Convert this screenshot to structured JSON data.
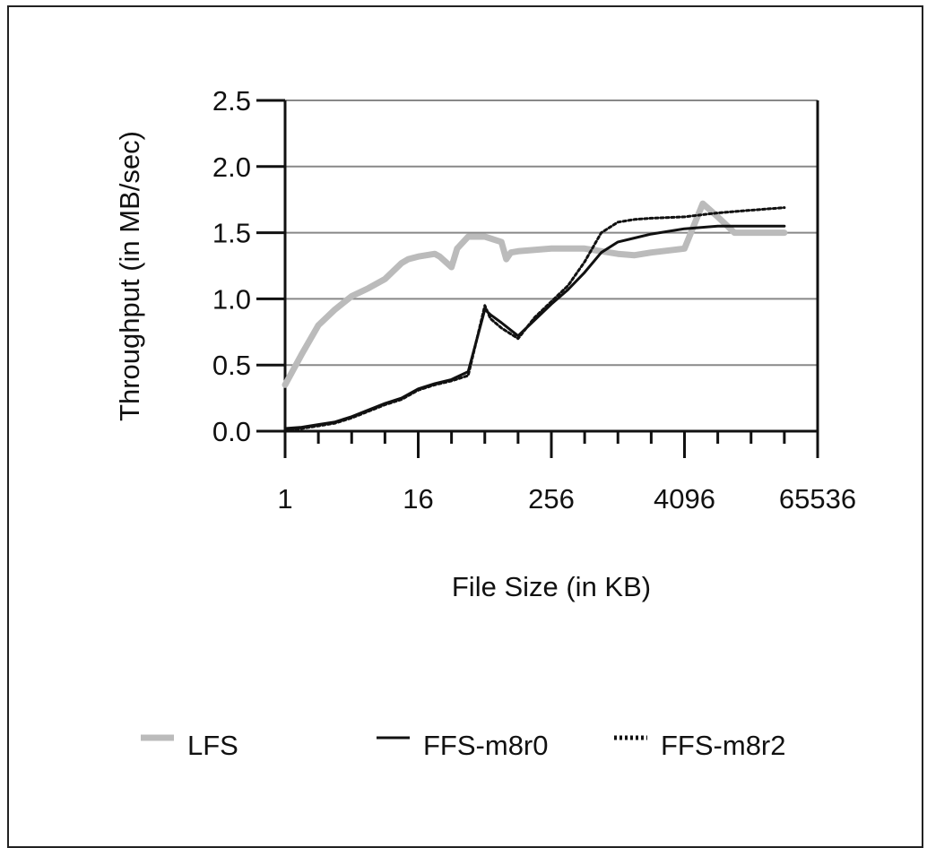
{
  "chart_data": {
    "type": "line",
    "xlabel": "File Size (in KB)",
    "ylabel": "Throughput (in MB/sec)",
    "x_scale": "log2",
    "xlim": [
      1,
      65536
    ],
    "ylim": [
      0,
      2.5
    ],
    "x_ticks": [
      "1",
      "16",
      "256",
      "4096",
      "65536"
    ],
    "y_ticks": [
      "0.0",
      "0.5",
      "1.0",
      "1.5",
      "2.0",
      "2.5"
    ],
    "grid": "horizontal",
    "legend_position": "bottom",
    "series": [
      {
        "name": "LFS",
        "color": "#bbbbbb",
        "style": "thick-solid",
        "x": [
          1,
          1.41,
          2,
          2.83,
          4,
          5.66,
          8,
          11.3,
          13,
          16,
          22.6,
          25,
          32,
          36,
          45.3,
          64,
          90.5,
          100,
          110,
          128,
          181,
          256,
          512,
          1024,
          1448,
          2048,
          4096,
          6000,
          8192,
          11585,
          16384,
          32768
        ],
        "y": [
          0.35,
          0.58,
          0.8,
          0.92,
          1.02,
          1.08,
          1.15,
          1.27,
          1.3,
          1.32,
          1.34,
          1.32,
          1.24,
          1.38,
          1.47,
          1.47,
          1.43,
          1.3,
          1.35,
          1.36,
          1.37,
          1.38,
          1.38,
          1.34,
          1.33,
          1.35,
          1.38,
          1.72,
          1.62,
          1.5,
          1.5,
          1.5
        ]
      },
      {
        "name": "FFS-m8r0",
        "color": "#111111",
        "style": "thin-solid",
        "x": [
          1,
          1.41,
          2,
          2.83,
          4,
          5.66,
          8,
          11.3,
          16,
          22.6,
          32,
          45.3,
          64,
          72,
          90.5,
          128,
          181,
          256,
          362,
          512,
          724,
          1024,
          1448,
          2048,
          4096,
          8192,
          16384,
          32768
        ],
        "y": [
          0.02,
          0.03,
          0.05,
          0.07,
          0.11,
          0.16,
          0.21,
          0.25,
          0.32,
          0.36,
          0.39,
          0.45,
          0.92,
          0.88,
          0.82,
          0.72,
          0.84,
          0.96,
          1.07,
          1.2,
          1.35,
          1.43,
          1.46,
          1.49,
          1.53,
          1.55,
          1.55,
          1.55
        ]
      },
      {
        "name": "FFS-m8r2",
        "color": "#111111",
        "style": "dotted",
        "x": [
          1,
          1.41,
          2,
          2.83,
          4,
          5.66,
          8,
          11.3,
          16,
          22.6,
          32,
          45.3,
          64,
          72,
          90.5,
          128,
          181,
          256,
          362,
          512,
          724,
          1024,
          1448,
          2048,
          4096,
          8192,
          16384,
          32768
        ],
        "y": [
          0.01,
          0.02,
          0.04,
          0.06,
          0.1,
          0.15,
          0.2,
          0.24,
          0.31,
          0.35,
          0.38,
          0.42,
          0.95,
          0.85,
          0.78,
          0.7,
          0.86,
          0.98,
          1.1,
          1.28,
          1.5,
          1.58,
          1.6,
          1.61,
          1.62,
          1.65,
          1.67,
          1.69
        ]
      }
    ]
  }
}
